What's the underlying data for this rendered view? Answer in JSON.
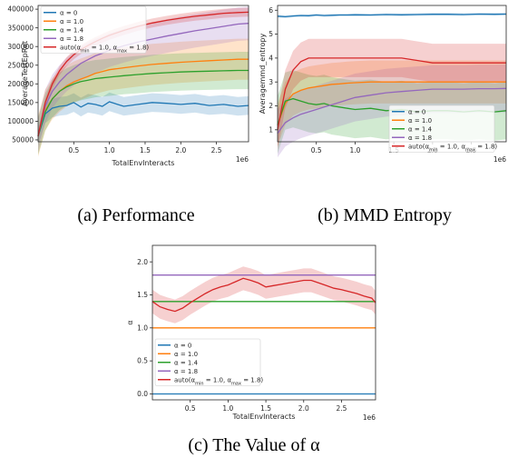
{
  "captions": {
    "a": "(a) Performance",
    "b": "(b) MMD Entropy",
    "c": "(c) The Value of α"
  },
  "legend_labels": [
    "α = 0",
    "α = 1.0",
    "α = 1.4",
    "α = 1.8",
    "auto(α_min = 1.0, α_max = 1.8)"
  ],
  "colors": [
    "#1f77b4",
    "#ff7f0e",
    "#2ca02c",
    "#9467bd",
    "#d62728"
  ],
  "chart_data": [
    {
      "id": "a",
      "type": "line",
      "xlabel": "TotalEnvInteracts",
      "ylabel": "AverageTestEpRet",
      "x_multiplier": "1e6",
      "xlim": [
        0.0,
        2.95
      ],
      "ylim": [
        45000,
        410000
      ],
      "xticks": [
        0.5,
        1.0,
        1.5,
        2.0,
        2.5
      ],
      "xtick_labels": [
        "0.5",
        "1.0",
        "1.5",
        "2.0",
        "2.5"
      ],
      "yticks": [
        50000,
        100000,
        150000,
        200000,
        250000,
        300000,
        350000,
        400000
      ],
      "ytick_labels": [
        "50000",
        "100000",
        "150000",
        "200000",
        "250000",
        "300000",
        "350000",
        "400000"
      ],
      "legend_position": "top-left",
      "x": [
        0.0,
        0.1,
        0.2,
        0.3,
        0.4,
        0.5,
        0.6,
        0.7,
        0.8,
        0.9,
        1.0,
        1.2,
        1.4,
        1.6,
        1.8,
        2.0,
        2.2,
        2.4,
        2.6,
        2.8,
        2.95
      ],
      "series": [
        {
          "name": "α = 0",
          "values": [
            60000,
            120000,
            135000,
            140000,
            142000,
            150000,
            138000,
            148000,
            145000,
            140000,
            152000,
            140000,
            145000,
            150000,
            148000,
            145000,
            148000,
            142000,
            145000,
            140000,
            142000
          ],
          "band": 25000
        },
        {
          "name": "α = 1.0",
          "values": [
            60000,
            130000,
            160000,
            180000,
            195000,
            205000,
            213000,
            220000,
            228000,
            233000,
            238000,
            243000,
            248000,
            252000,
            255000,
            258000,
            260000,
            262000,
            264000,
            266000,
            266000
          ],
          "band": 55000
        },
        {
          "name": "α = 1.4",
          "values": [
            60000,
            125000,
            160000,
            180000,
            192000,
            200000,
            206000,
            210000,
            214000,
            216000,
            218000,
            222000,
            225000,
            228000,
            230000,
            232000,
            233000,
            234000,
            235000,
            236000,
            236000
          ],
          "band": 50000
        },
        {
          "name": "α = 1.8",
          "values": [
            60000,
            140000,
            180000,
            205000,
            225000,
            240000,
            255000,
            265000,
            275000,
            282000,
            290000,
            302000,
            312000,
            320000,
            328000,
            335000,
            342000,
            348000,
            354000,
            360000,
            362000
          ],
          "band": 45000
        },
        {
          "name": "auto(α_min = 1.0, α_max = 1.8)",
          "values": [
            60000,
            150000,
            200000,
            235000,
            260000,
            278000,
            292000,
            303000,
            313000,
            322000,
            330000,
            343000,
            354000,
            363000,
            370000,
            376000,
            381000,
            385000,
            389000,
            391000,
            392000
          ],
          "band": 12000
        }
      ]
    },
    {
      "id": "b",
      "type": "line",
      "xlabel": "",
      "ylabel": "Averagemmd_entropy",
      "x_multiplier": "1e6",
      "xlim": [
        0.0,
        2.95
      ],
      "ylim": [
        0.5,
        6.2
      ],
      "xticks": [
        0.5,
        1.0,
        1.5,
        2.0,
        2.5
      ],
      "xtick_labels": [
        "0.5",
        "1.0",
        "1.5",
        "2.0",
        "2.5"
      ],
      "yticks": [
        1,
        2,
        3,
        4,
        5,
        6
      ],
      "ytick_labels": [
        "1",
        "2",
        "3",
        "4",
        "5",
        "6"
      ],
      "legend_position": "bottom-right",
      "x": [
        0.0,
        0.1,
        0.2,
        0.3,
        0.4,
        0.5,
        0.6,
        0.7,
        0.8,
        0.9,
        1.0,
        1.2,
        1.4,
        1.6,
        1.8,
        2.0,
        2.2,
        2.4,
        2.6,
        2.8,
        2.95
      ],
      "series": [
        {
          "name": "α = 0",
          "values": [
            5.75,
            5.73,
            5.76,
            5.78,
            5.77,
            5.8,
            5.78,
            5.79,
            5.8,
            5.8,
            5.81,
            5.8,
            5.82,
            5.81,
            5.82,
            5.83,
            5.83,
            5.82,
            5.84,
            5.83,
            5.84
          ],
          "band": 0.05
        },
        {
          "name": "α = 1.0",
          "values": [
            1.2,
            2.1,
            2.5,
            2.65,
            2.75,
            2.8,
            2.85,
            2.9,
            2.92,
            2.95,
            2.97,
            3.0,
            3.0,
            3.0,
            3.0,
            3.0,
            3.0,
            3.0,
            3.0,
            3.0,
            3.0
          ],
          "band": 0.9
        },
        {
          "name": "α = 1.4",
          "values": [
            1.2,
            2.2,
            2.3,
            2.2,
            2.1,
            2.05,
            2.1,
            2.0,
            1.95,
            1.9,
            1.85,
            1.9,
            1.8,
            1.85,
            1.75,
            1.8,
            1.8,
            1.75,
            1.8,
            1.75,
            1.8
          ],
          "band": 1.2
        },
        {
          "name": "α = 1.8",
          "values": [
            0.85,
            1.3,
            1.5,
            1.65,
            1.75,
            1.85,
            1.95,
            2.05,
            2.15,
            2.25,
            2.35,
            2.45,
            2.55,
            2.6,
            2.65,
            2.7,
            2.7,
            2.7,
            2.72,
            2.72,
            2.73
          ],
          "band": 1.0
        },
        {
          "name": "auto(α_min = 1.0, α_max = 1.8)",
          "values": [
            1.0,
            2.7,
            3.5,
            3.85,
            4.0,
            4.0,
            4.0,
            4.0,
            4.0,
            4.0,
            4.0,
            4.0,
            4.0,
            4.0,
            3.9,
            3.8,
            3.8,
            3.8,
            3.8,
            3.8,
            3.8
          ],
          "band": 0.8
        }
      ]
    },
    {
      "id": "c",
      "type": "line",
      "xlabel": "TotalEnvInteracts",
      "ylabel": "α",
      "x_multiplier": "1e6",
      "xlim": [
        0.0,
        2.95
      ],
      "ylim": [
        -0.09,
        2.25
      ],
      "xticks": [
        0.5,
        1.0,
        1.5,
        2.0,
        2.5
      ],
      "xtick_labels": [
        "0.5",
        "1.0",
        "1.5",
        "2.0",
        "2.5"
      ],
      "yticks": [
        0.0,
        0.5,
        1.0,
        1.5,
        2.0
      ],
      "ytick_labels": [
        "0.0",
        "0.5",
        "1.0",
        "1.5",
        "2.0"
      ],
      "legend_position": "bottom-left",
      "x": [
        0.0,
        0.1,
        0.2,
        0.3,
        0.4,
        0.5,
        0.6,
        0.7,
        0.8,
        0.9,
        1.0,
        1.1,
        1.2,
        1.3,
        1.4,
        1.5,
        1.6,
        1.7,
        1.8,
        1.9,
        2.0,
        2.1,
        2.2,
        2.3,
        2.4,
        2.5,
        2.6,
        2.7,
        2.8,
        2.9,
        2.95
      ],
      "series": [
        {
          "name": "α = 0",
          "values": [
            0.0,
            0.0,
            0.0,
            0.0,
            0.0,
            0.0,
            0.0,
            0.0,
            0.0,
            0.0,
            0.0,
            0.0,
            0.0,
            0.0,
            0.0,
            0.0,
            0.0,
            0.0,
            0.0,
            0.0,
            0.0,
            0.0,
            0.0,
            0.0,
            0.0,
            0.0,
            0.0,
            0.0,
            0.0,
            0.0,
            0.0
          ],
          "band": 0
        },
        {
          "name": "α = 1.0",
          "values": [
            1.0,
            1.0,
            1.0,
            1.0,
            1.0,
            1.0,
            1.0,
            1.0,
            1.0,
            1.0,
            1.0,
            1.0,
            1.0,
            1.0,
            1.0,
            1.0,
            1.0,
            1.0,
            1.0,
            1.0,
            1.0,
            1.0,
            1.0,
            1.0,
            1.0,
            1.0,
            1.0,
            1.0,
            1.0,
            1.0,
            1.0
          ],
          "band": 0
        },
        {
          "name": "α = 1.4",
          "values": [
            1.4,
            1.4,
            1.4,
            1.4,
            1.4,
            1.4,
            1.4,
            1.4,
            1.4,
            1.4,
            1.4,
            1.4,
            1.4,
            1.4,
            1.4,
            1.4,
            1.4,
            1.4,
            1.4,
            1.4,
            1.4,
            1.4,
            1.4,
            1.4,
            1.4,
            1.4,
            1.4,
            1.4,
            1.4,
            1.4,
            1.4
          ],
          "band": 0
        },
        {
          "name": "α = 1.8",
          "values": [
            1.8,
            1.8,
            1.8,
            1.8,
            1.8,
            1.8,
            1.8,
            1.8,
            1.8,
            1.8,
            1.8,
            1.8,
            1.8,
            1.8,
            1.8,
            1.8,
            1.8,
            1.8,
            1.8,
            1.8,
            1.8,
            1.8,
            1.8,
            1.8,
            1.8,
            1.8,
            1.8,
            1.8,
            1.8,
            1.8,
            1.8
          ],
          "band": 0
        },
        {
          "name": "auto(α_min = 1.0, α_max = 1.8)",
          "values": [
            1.4,
            1.32,
            1.28,
            1.25,
            1.3,
            1.38,
            1.45,
            1.52,
            1.58,
            1.62,
            1.65,
            1.7,
            1.75,
            1.72,
            1.68,
            1.62,
            1.64,
            1.66,
            1.68,
            1.7,
            1.72,
            1.72,
            1.68,
            1.64,
            1.6,
            1.58,
            1.55,
            1.52,
            1.48,
            1.45,
            1.38
          ],
          "band": 0.18
        }
      ]
    }
  ]
}
